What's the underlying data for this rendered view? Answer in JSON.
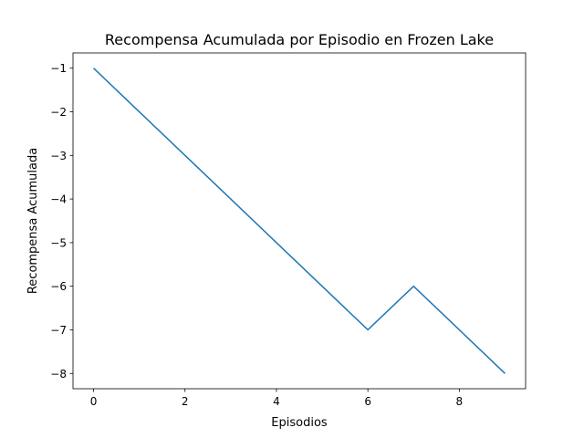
{
  "chart_data": {
    "type": "line",
    "title": "Recompensa Acumulada por Episodio en Frozen Lake",
    "xlabel": "Episodios",
    "ylabel": "Recompensa Acumulada",
    "x": [
      0,
      1,
      2,
      3,
      4,
      5,
      6,
      7,
      8,
      9
    ],
    "series": [
      {
        "values": [
          -1,
          -2,
          -3,
          -4,
          -5,
          -6,
          -7,
          -6,
          -7,
          -8
        ],
        "color": "#1f77b4"
      }
    ],
    "xlim": [
      -0.45,
      9.45
    ],
    "ylim": [
      -8.35,
      -0.65
    ],
    "xticks": [
      0,
      2,
      4,
      6,
      8
    ],
    "xtick_labels": [
      "0",
      "2",
      "4",
      "6",
      "8"
    ],
    "yticks": [
      -1,
      -2,
      -3,
      -4,
      -5,
      -6,
      -7,
      -8
    ],
    "ytick_labels": [
      "−1",
      "−2",
      "−3",
      "−4",
      "−5",
      "−6",
      "−7",
      "−8"
    ],
    "grid": false,
    "legend": "none"
  }
}
